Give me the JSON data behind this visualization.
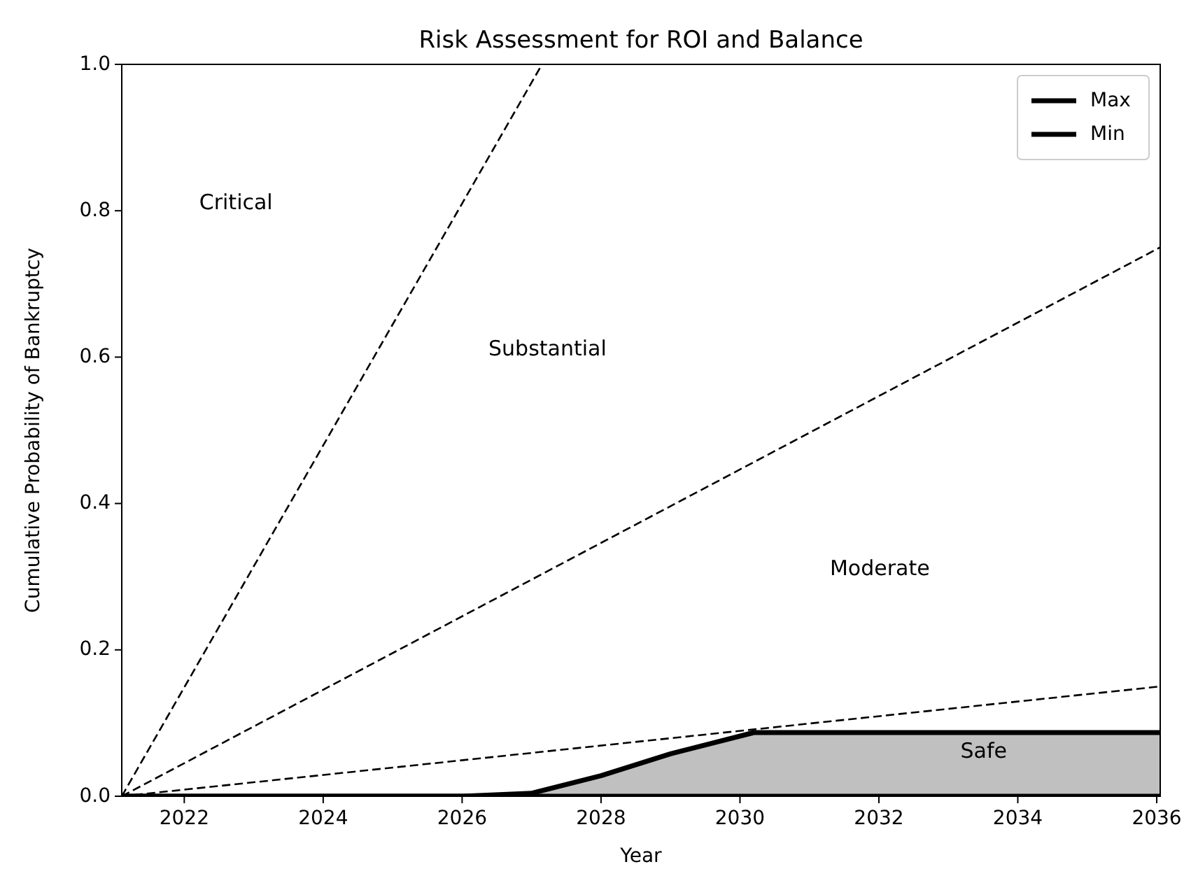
{
  "chart_data": {
    "type": "line",
    "title": "Risk Assessment for ROI and Balance",
    "xlabel": "Year",
    "ylabel": "Cumulative Probability of Bankruptcy",
    "xlim": [
      2021.1,
      2036.05
    ],
    "ylim": [
      0,
      1
    ],
    "xticks": [
      2022,
      2024,
      2026,
      2028,
      2030,
      2032,
      2034,
      2036
    ],
    "yticks": [
      {
        "value": 0,
        "label": "0.0"
      },
      0.2,
      0.4,
      0.6,
      0.8,
      {
        "value": 1,
        "label": "1.0"
      }
    ],
    "legend": "top right",
    "grid": false,
    "marker": "none",
    "series": [
      {
        "color": "#000000",
        "line_style": "dashed",
        "x": [
          2021.1,
          2027.15
        ],
        "values": [
          0,
          1
        ]
      },
      {
        "color": "#000000",
        "line_style": "dashed",
        "x": [
          2021.1,
          2036.05
        ],
        "values": [
          0,
          0.75
        ]
      },
      {
        "color": "#000000",
        "line_style": "dashed",
        "x": [
          2021.1,
          2036.05
        ],
        "values": [
          0,
          0.15
        ]
      },
      {
        "name": "Max",
        "color": "#000000",
        "line_style": "solid",
        "x": [
          2021.1,
          2026,
          2027,
          2028,
          2029,
          2030.2,
          2036.05
        ],
        "values": [
          0,
          0,
          0.004,
          0.028,
          0.058,
          0.087,
          0.087
        ],
        "lower": [
          0,
          0,
          0,
          0,
          0,
          0,
          0
        ],
        "upper": [
          0,
          0,
          0.004,
          0.028,
          0.058,
          0.087,
          0.087
        ]
      },
      {
        "name": "Min",
        "color": "#000000",
        "line_style": "solid",
        "x": [
          2021.1,
          2036.05
        ],
        "values": [
          0,
          0
        ]
      }
    ],
    "annotations": [
      "Critical",
      "Substantial",
      "Moderate",
      "Safe"
    ]
  }
}
